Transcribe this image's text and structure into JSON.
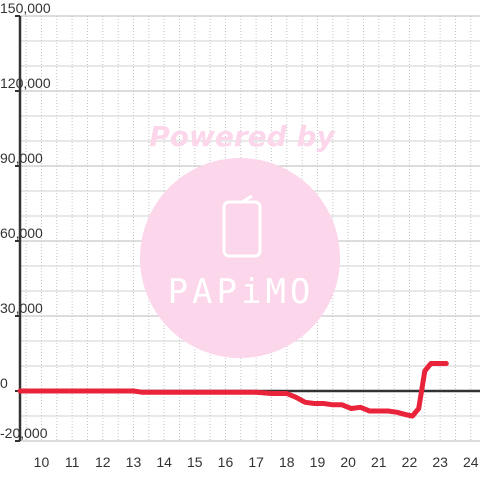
{
  "watermark": {
    "line1": "Powered by",
    "brand": "PAPiMO",
    "color": "#fcd6ea"
  },
  "chart_data": {
    "type": "line",
    "title": "",
    "xlabel": "",
    "ylabel": "",
    "xlim": [
      9.3,
      24.3
    ],
    "ylim": [
      -20000,
      150000
    ],
    "grid": true,
    "x_ticks": [
      10,
      11,
      12,
      13,
      14,
      15,
      16,
      17,
      18,
      19,
      20,
      21,
      22,
      23,
      24
    ],
    "x_tick_labels": [
      "10",
      "11",
      "12",
      "13",
      "14",
      "15",
      "16",
      "17",
      "18",
      "19",
      "20",
      "21",
      "22",
      "23",
      "24"
    ],
    "y_ticks": [
      -20000,
      0,
      30000,
      60000,
      90000,
      120000,
      150000
    ],
    "y_tick_labels": [
      "-20,000",
      "0",
      "30,000",
      "60,000",
      "90,000",
      "120,000",
      "150,000"
    ],
    "series": [
      {
        "color": "#e8233a",
        "x": [
          9.3,
          10,
          11,
          12,
          13,
          13.3,
          14,
          15,
          16,
          17,
          17.5,
          18,
          18.3,
          18.6,
          18.9,
          19.2,
          19.5,
          19.8,
          20.1,
          20.4,
          20.7,
          21,
          21.3,
          21.6,
          21.9,
          22.1,
          22.3,
          22.5,
          22.7,
          22.9,
          23.2
        ],
        "y": [
          0,
          0,
          0,
          0,
          0,
          -500,
          -500,
          -500,
          -500,
          -500,
          -1000,
          -1000,
          -2500,
          -4500,
          -5000,
          -5000,
          -5500,
          -5500,
          -7000,
          -6500,
          -8000,
          -8000,
          -8000,
          -8500,
          -9500,
          -10000,
          -7000,
          8000,
          11000,
          11000,
          11000
        ]
      }
    ]
  }
}
